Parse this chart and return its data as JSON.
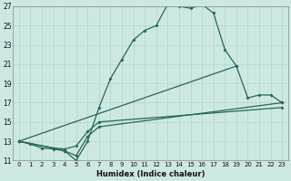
{
  "xlabel": "Humidex (Indice chaleur)",
  "xlim": [
    -0.5,
    23.5
  ],
  "ylim": [
    11,
    27
  ],
  "xticks": [
    0,
    1,
    2,
    3,
    4,
    5,
    6,
    7,
    8,
    9,
    10,
    11,
    12,
    13,
    14,
    15,
    16,
    17,
    18,
    19,
    20,
    21,
    22,
    23
  ],
  "yticks": [
    11,
    13,
    15,
    17,
    19,
    21,
    23,
    25,
    27
  ],
  "bg_color": "#cde8e2",
  "grid_color": "#b0d4cc",
  "line_color": "#276657",
  "curves": [
    {
      "x": [
        0,
        1,
        2,
        3,
        4,
        5,
        6,
        7,
        8,
        9,
        10,
        11,
        12,
        13,
        14,
        15,
        16,
        17,
        18,
        19
      ],
      "y": [
        13.0,
        12.7,
        12.3,
        12.2,
        12.0,
        11.0,
        13.0,
        16.5,
        19.5,
        21.5,
        23.5,
        24.5,
        25.0,
        27.2,
        27.0,
        26.8,
        27.2,
        26.3,
        22.5,
        20.8
      ]
    },
    {
      "x": [
        0,
        19,
        20,
        21,
        22,
        23
      ],
      "y": [
        13.0,
        20.8,
        17.5,
        17.8,
        17.8,
        17.0
      ]
    },
    {
      "x": [
        0,
        3,
        4,
        5,
        6,
        7,
        23
      ],
      "y": [
        13.0,
        12.3,
        12.0,
        11.5,
        13.5,
        14.5,
        17.0
      ]
    },
    {
      "x": [
        0,
        3,
        4,
        5,
        6,
        7,
        23
      ],
      "y": [
        13.0,
        12.3,
        12.2,
        12.5,
        14.0,
        15.0,
        16.5
      ]
    }
  ]
}
